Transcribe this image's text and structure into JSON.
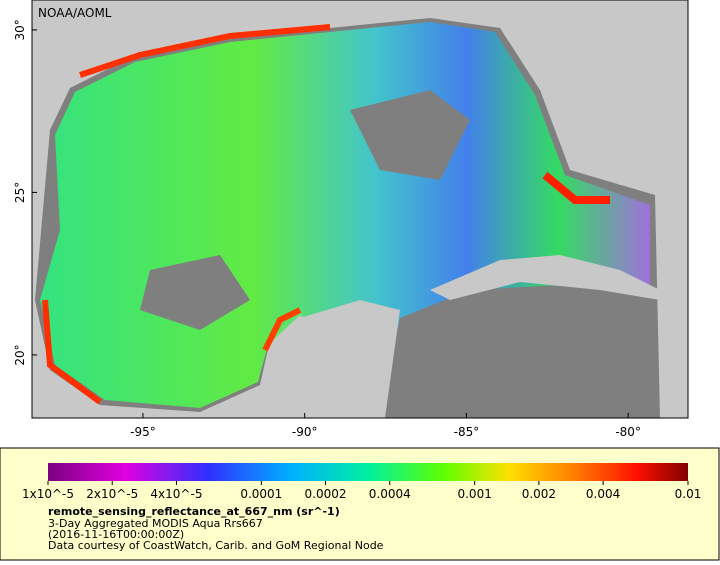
{
  "map": {
    "credit": "NOAA/AOML",
    "lon_lim": [
      -98.43,
      -78.15
    ],
    "lat_lim": [
      18.06,
      30.92
    ],
    "lon_ticks": [
      {
        "value": -95,
        "label": "-95°"
      },
      {
        "value": -90,
        "label": "-90°"
      },
      {
        "value": -85,
        "label": "-85°"
      },
      {
        "value": -80,
        "label": "-80°"
      }
    ],
    "lat_ticks": [
      {
        "value": 20,
        "label": "20°"
      },
      {
        "value": 25,
        "label": "25°"
      },
      {
        "value": 30,
        "label": "30°"
      }
    ]
  },
  "colorbar": {
    "log_scale": true,
    "lim": [
      1e-05,
      0.01
    ],
    "ticks": [
      {
        "value": 1e-05,
        "label": "1x10^-5"
      },
      {
        "value": 2e-05,
        "label": "2x10^-5"
      },
      {
        "value": 4e-05,
        "label": "4x10^-5"
      },
      0.0001,
      0.0002,
      0.0004,
      0.001,
      0.002,
      0.004,
      0.01
    ],
    "variable": "remote_sensing_reflectance_at_667_nm (sr^-1)",
    "lines": [
      "3-Day Aggregated MODIS Aqua Rrs667",
      "(2016-11-16T00:00:00Z)",
      "Data courtesy of CoastWatch, Carib. and GoM Regional Node"
    ]
  }
}
